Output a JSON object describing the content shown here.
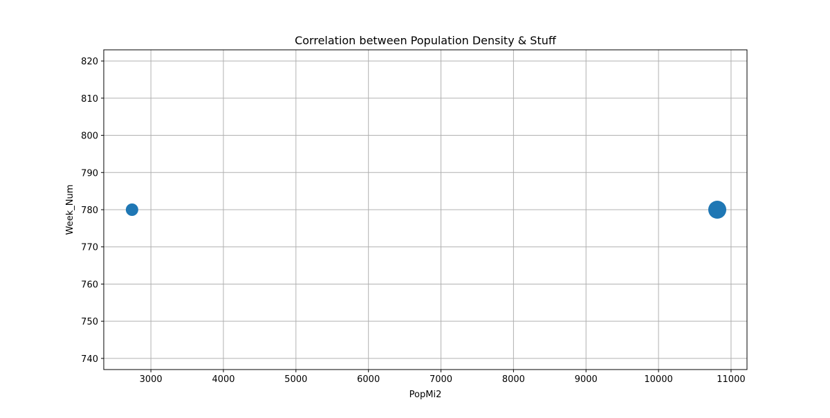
{
  "chart_data": {
    "type": "scatter",
    "title": "Correlation between Population Density & Stuff",
    "xlabel": "PopMi2",
    "ylabel": "Week_Num",
    "xlim": [
      2350,
      11220
    ],
    "ylim": [
      737,
      823
    ],
    "xticks": [
      3000,
      4000,
      5000,
      6000,
      7000,
      8000,
      9000,
      10000,
      11000
    ],
    "yticks": [
      740,
      750,
      760,
      770,
      780,
      790,
      800,
      810,
      820
    ],
    "grid": true,
    "series": [
      {
        "points": [
          {
            "x": 2740,
            "y": 780,
            "size": 1
          },
          {
            "x": 10810,
            "y": 780,
            "size": 2.1
          }
        ]
      }
    ],
    "colors": {
      "point": "#1f77b4",
      "grid": "#b0b0b0",
      "axis": "#000000"
    }
  }
}
